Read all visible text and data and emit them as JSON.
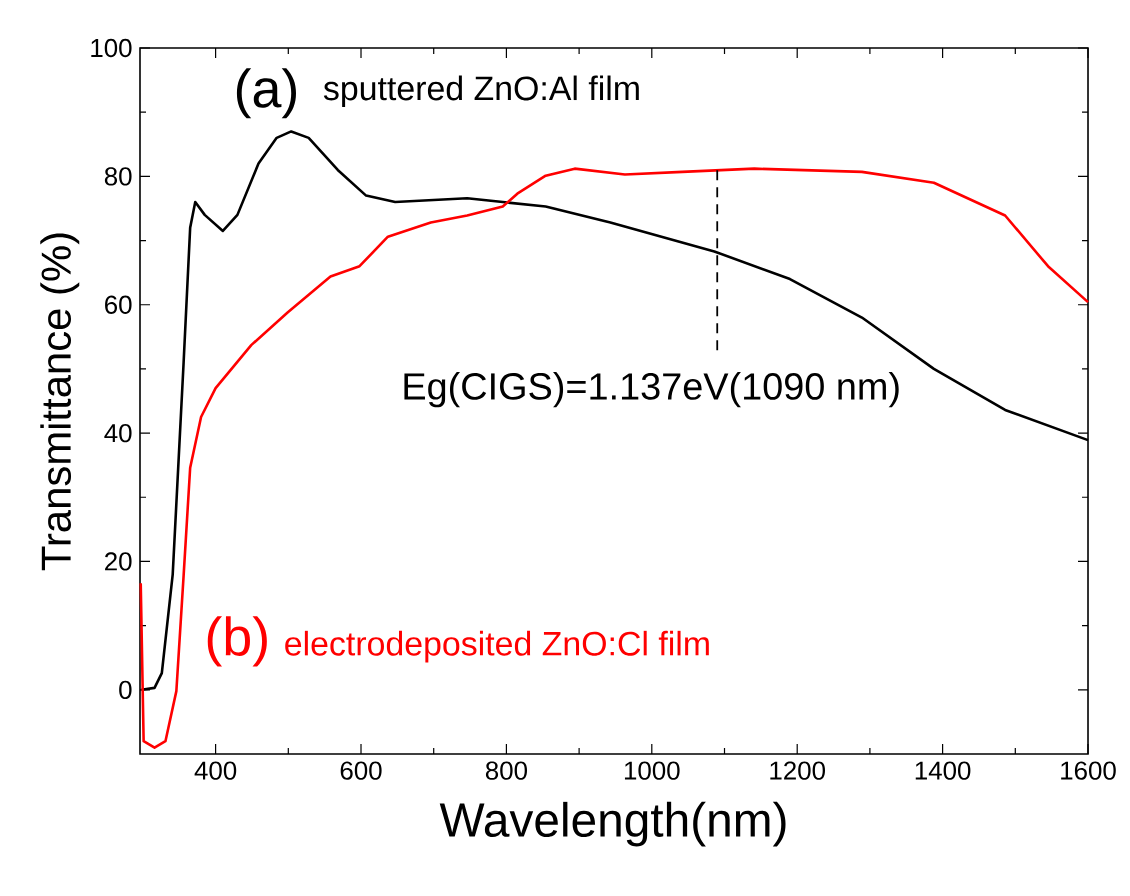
{
  "chart_data": {
    "type": "line",
    "xlabel": "Wavelength(nm)",
    "ylabel": "Transmittance (%)",
    "xlim": [
      296,
      1600
    ],
    "ylim": [
      -10,
      100
    ],
    "xticks": [
      400,
      600,
      800,
      1000,
      1200,
      1400,
      1600
    ],
    "yticks": [
      0,
      20,
      40,
      60,
      80,
      100
    ],
    "grid": false,
    "marker": "none",
    "line_style": "solid",
    "annotations": [
      "(a)",
      "(b)"
    ],
    "ref_lines": [
      {
        "axis": "x",
        "value": 1090,
        "label": "Eg(CIGS)=1.137eV(1090 nm)",
        "line_style": "dashed",
        "color": "#000000"
      }
    ],
    "series": [
      {
        "name": "sputtered ZnO:Al film",
        "color": "#000000",
        "x": [
          298,
          316,
          326,
          341,
          356,
          365,
          372,
          385,
          410,
          430,
          459,
          484,
          504,
          528,
          568,
          607,
          647,
          746,
          795,
          854,
          943,
          1086,
          1190,
          1289,
          1388,
          1486,
          1600
        ],
        "values": [
          0,
          0.3,
          2.6,
          18,
          51,
          72,
          76,
          74,
          71.5,
          74,
          82,
          86,
          87,
          86,
          81,
          77,
          76,
          76.6,
          76,
          75.3,
          72.8,
          68.3,
          64,
          58,
          50,
          43.6,
          38.9
        ]
      },
      {
        "name": "electrodeposited ZnO:Cl film",
        "color": "#ff0000",
        "x": [
          297,
          301,
          316,
          331,
          346,
          356,
          365,
          380,
          400,
          449,
          499,
          558,
          598,
          637,
          696,
          746,
          795,
          815,
          854,
          894,
          963,
          1042,
          1141,
          1289,
          1388,
          1486,
          1545,
          1600
        ],
        "values": [
          16.6,
          -8,
          -9,
          -8,
          -0.2,
          17.8,
          34.6,
          42.5,
          47,
          53.7,
          58.8,
          64.4,
          66,
          70.6,
          72.8,
          73.9,
          75.3,
          77.3,
          80.1,
          81.2,
          80.3,
          80.7,
          81.2,
          80.7,
          79,
          73.9,
          66,
          60.4
        ]
      }
    ]
  }
}
